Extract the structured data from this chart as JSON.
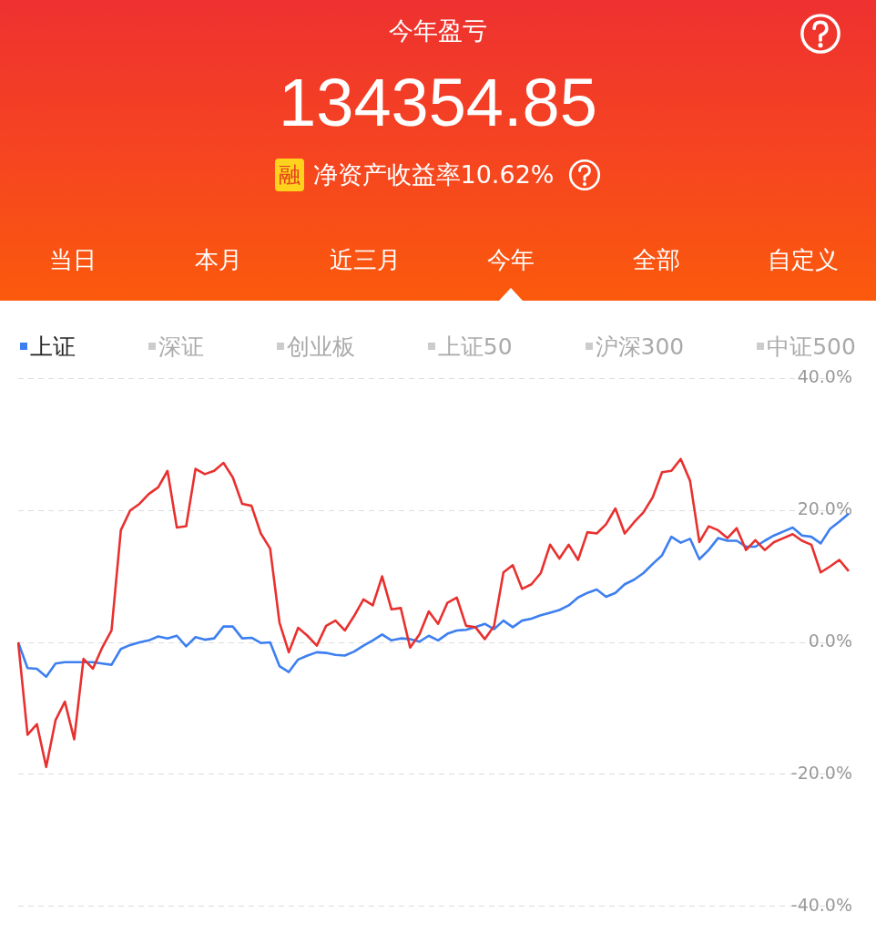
{
  "chart_data": {
    "type": "line",
    "title": "今年盈亏",
    "subtitle": "134354.85",
    "annotations": [
      "融",
      "净资产收益率10.62%",
      "当日",
      "本月",
      "近三月",
      "今年",
      "全部",
      "自定义",
      "深证",
      "创业板",
      "上证50",
      "沪深300",
      "中证500"
    ],
    "categories": [
      null,
      null,
      null,
      null,
      null,
      null,
      null,
      null,
      null,
      null,
      null,
      null,
      null,
      null,
      null,
      null,
      null,
      null,
      null,
      null,
      null,
      null,
      null,
      null,
      null,
      null,
      null,
      null,
      null,
      null,
      null,
      null,
      null,
      null,
      null,
      null,
      null,
      null,
      null,
      null,
      null,
      null,
      null,
      null,
      null,
      null,
      null,
      null,
      null,
      null,
      null,
      null,
      null,
      null,
      null,
      null,
      null,
      null,
      null,
      null,
      null,
      null,
      null,
      null,
      null,
      null,
      null,
      null,
      null,
      null,
      null,
      null,
      null,
      null,
      null,
      null,
      null,
      null,
      null,
      null,
      null,
      null,
      null,
      null,
      null,
      null,
      null,
      null,
      null,
      null
    ],
    "series": [
      {
        "color": "#e8312f",
        "values": [
          0,
          -14,
          -12.4,
          -18.9,
          -11.8,
          -9,
          -14.7,
          -2.5,
          -4,
          -0.8,
          1.8,
          17,
          20,
          21,
          22.5,
          23.5,
          26,
          17.4,
          17.6,
          26.3,
          25.5,
          26,
          27.2,
          25,
          21,
          20.7,
          16.5,
          14.2,
          3,
          -1.5,
          2.2,
          1,
          -0.5,
          2.5,
          3.3,
          1.8,
          4,
          6.5,
          5.6,
          10,
          5,
          5.2,
          -0.8,
          1.2,
          4.7,
          2.8,
          6,
          6.8,
          2.5,
          2.3,
          0.5,
          2.5,
          10.6,
          11.7,
          8.1,
          8.8,
          10.5,
          14.8,
          12.7,
          14.8,
          12.5,
          16.7,
          16.5,
          17.9,
          20.3,
          16.5,
          18.2,
          19.7,
          22,
          25.8,
          26,
          27.8,
          24.5,
          15.2,
          17.6,
          17,
          15.8,
          17.3,
          14,
          15.5,
          14,
          15.2,
          15.8,
          16.4,
          15.4,
          14.8,
          10.6,
          11.5,
          12.5,
          10.8
        ]
      },
      {
        "name": "上证",
        "color": "#3d7ff0",
        "values": [
          0,
          -3.9,
          -4,
          -5.2,
          -3.2,
          -3,
          -3,
          -3,
          -3,
          -3.2,
          -3.4,
          -1,
          -0.4,
          0,
          0.3,
          0.9,
          0.6,
          1,
          -0.6,
          0.8,
          0.4,
          0.6,
          2.4,
          2.4,
          0.6,
          0.7,
          -0.1,
          0,
          -3.6,
          -4.5,
          -2.6,
          -2,
          -1.5,
          -1.6,
          -1.9,
          -2,
          -1.4,
          -0.5,
          0.3,
          1.2,
          0.3,
          0.6,
          0.5,
          0.1,
          1,
          0.3,
          1.3,
          1.8,
          1.9,
          2.3,
          2.8,
          2,
          3.3,
          2.3,
          3.3,
          3.6,
          4.1,
          4.5,
          4.9,
          5.6,
          6.8,
          7.5,
          8,
          6.9,
          7.5,
          8.8,
          9.5,
          10.5,
          11.9,
          13.2,
          16,
          15.1,
          15.7,
          12.6,
          14,
          15.8,
          15.4,
          15.4,
          14.5,
          14.5,
          15.4,
          16.2,
          16.8,
          17.4,
          16.2,
          16,
          15,
          17.2,
          18.3,
          19.5
        ]
      }
    ],
    "ylim": [
      -40,
      40
    ],
    "yticks": [
      {
        "value": 40,
        "label": "40.0%"
      },
      {
        "value": 20,
        "label": "20.0%"
      },
      {
        "value": 0,
        "label": "0.0%"
      },
      {
        "value": -20,
        "label": "-20.0%"
      },
      {
        "value": -40,
        "label": "-40.0%"
      }
    ],
    "tick_labels": "y",
    "grid": "y",
    "legend": "top left",
    "marker": "none",
    "line_style": "solid"
  }
}
